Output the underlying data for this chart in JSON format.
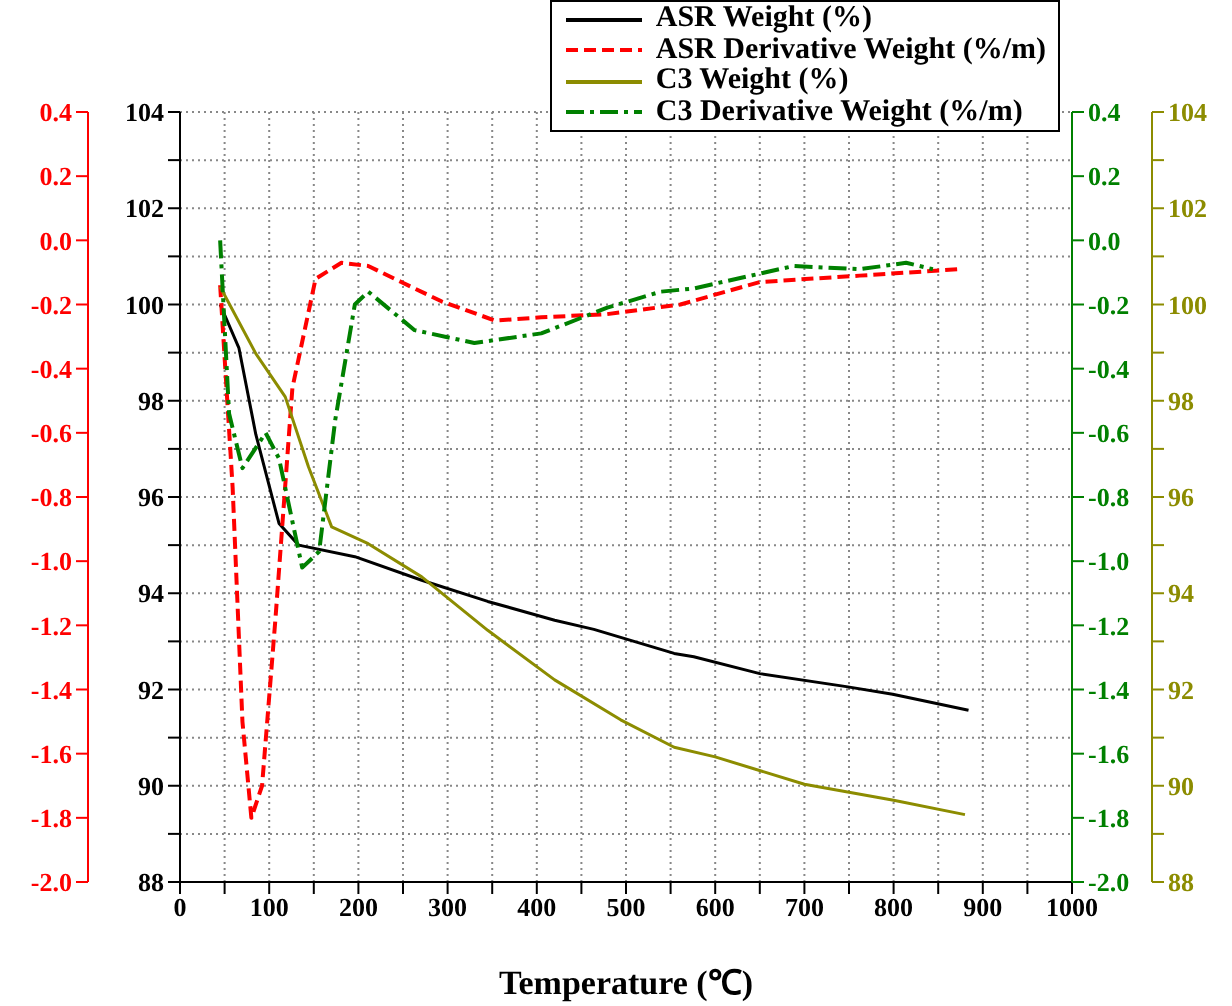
{
  "chart_data": {
    "type": "line",
    "xlabel": "Temperature (℃)",
    "xlim": [
      0,
      1000
    ],
    "xticks": [
      0,
      {
        "value": 50,
        "label": null
      },
      100,
      {
        "value": 150,
        "label": null
      },
      200,
      {
        "value": 250,
        "label": null
      },
      300,
      {
        "value": 350,
        "label": null
      },
      400,
      {
        "value": 450,
        "label": null
      },
      500,
      {
        "value": 550,
        "label": null
      },
      600,
      {
        "value": 650,
        "label": null
      },
      700,
      {
        "value": 750,
        "label": null
      },
      800,
      {
        "value": 850,
        "label": null
      },
      900,
      {
        "value": 950,
        "label": null
      },
      1000
    ],
    "ylim": [
      88,
      104
    ],
    "yticks": [
      88,
      {
        "value": 89,
        "label": null
      },
      90,
      {
        "value": 91,
        "label": null
      },
      92,
      {
        "value": 93,
        "label": null
      },
      94,
      {
        "value": 95,
        "label": null
      },
      96,
      {
        "value": 97,
        "label": null
      },
      98,
      {
        "value": 99,
        "label": null
      },
      100,
      {
        "value": 101,
        "label": null
      },
      102,
      {
        "value": 103,
        "label": null
      },
      104
    ],
    "y2lim": [
      -2.0,
      0.4
    ],
    "y2ticks": [
      {
        "value": -2.0,
        "label": "-2.0"
      },
      {
        "value": -1.8,
        "label": "-1.8"
      },
      {
        "value": -1.6,
        "label": "-1.6"
      },
      {
        "value": -1.4,
        "label": "-1.4"
      },
      {
        "value": -1.2,
        "label": "-1.2"
      },
      {
        "value": -1.0,
        "label": "-1.0"
      },
      {
        "value": -0.8,
        "label": "-0.8"
      },
      {
        "value": -0.6,
        "label": "-0.6"
      },
      {
        "value": -0.4,
        "label": "-0.4"
      },
      {
        "value": -0.2,
        "label": "-0.2"
      },
      {
        "value": 0.0,
        "label": "0.0"
      },
      {
        "value": 0.2,
        "label": "0.2"
      },
      {
        "value": 0.4,
        "label": "0.4"
      }
    ],
    "y3lim": [
      88,
      104
    ],
    "y3ticks": [
      88,
      {
        "value": 89,
        "label": null
      },
      90,
      {
        "value": 91,
        "label": null
      },
      92,
      {
        "value": 93,
        "label": null
      },
      94,
      {
        "value": 95,
        "label": null
      },
      96,
      {
        "value": 97,
        "label": null
      },
      98,
      {
        "value": 99,
        "label": null
      },
      100,
      {
        "value": 101,
        "label": null
      },
      102,
      {
        "value": 103,
        "label": null
      },
      104
    ],
    "grid": true,
    "legend": "top right",
    "marker": "none",
    "series": [
      {
        "name": "ASR Weight (%)",
        "color": "#000000",
        "axis": "y",
        "line_style": "solid",
        "x": [
          45,
          66,
          85,
          111,
          133,
          196,
          271,
          345,
          420,
          464,
          554,
          576,
          650,
          747,
          799,
          884
        ],
        "values": [
          100.0,
          99.1,
          97.3,
          95.45,
          95.0,
          94.76,
          94.27,
          93.83,
          93.44,
          93.25,
          92.75,
          92.68,
          92.33,
          92.06,
          91.9,
          91.57
        ]
      },
      {
        "name": "ASR Derivative Weight (%/m)",
        "color": "#ff0000",
        "axis": "y2",
        "line_style": "dashed",
        "x": [
          45,
          59,
          70,
          80,
          92,
          107,
          126,
          152,
          181,
          211,
          248,
          293,
          353,
          405,
          479,
          561,
          650,
          762,
          873
        ],
        "values": [
          -0.14,
          -0.77,
          -1.5,
          -1.8,
          -1.7,
          -1.18,
          -0.46,
          -0.12,
          -0.07,
          -0.08,
          -0.13,
          -0.19,
          -0.25,
          -0.24,
          -0.23,
          -0.2,
          -0.13,
          -0.11,
          -0.09
        ]
      },
      {
        "name": "C3 Weight (%)",
        "color": "#8c8c00",
        "axis": "y3",
        "line_style": "solid",
        "x": [
          45,
          85,
          118,
          144,
          170,
          211,
          271,
          345,
          420,
          494,
          554,
          600,
          700,
          800,
          880
        ],
        "values": [
          100.37,
          98.98,
          98.08,
          96.63,
          95.38,
          95.03,
          94.34,
          93.23,
          92.2,
          91.37,
          90.8,
          90.6,
          90.03,
          89.7,
          89.4
        ]
      },
      {
        "name": "C3 Derivative Weight (%/m)",
        "color": "#008000",
        "axis": "y2",
        "line_style": "dashdot",
        "x": [
          45,
          55,
          70,
          96,
          111,
          137,
          156,
          174,
          196,
          211,
          263,
          330,
          405,
          479,
          539,
          576,
          688,
          762,
          814,
          844
        ],
        "values": [
          0.0,
          -0.54,
          -0.71,
          -0.6,
          -0.68,
          -1.02,
          -0.97,
          -0.56,
          -0.2,
          -0.16,
          -0.28,
          -0.32,
          -0.29,
          -0.21,
          -0.16,
          -0.15,
          -0.08,
          -0.09,
          -0.07,
          -0.09
        ]
      }
    ]
  }
}
